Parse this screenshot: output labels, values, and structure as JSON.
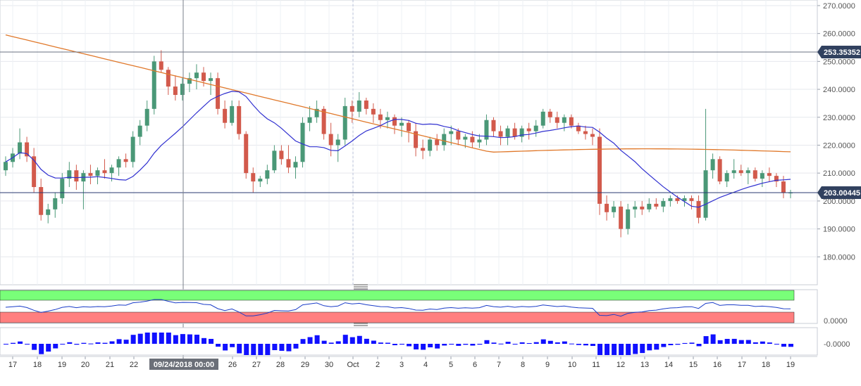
{
  "chart_data": [
    {
      "type": "candlestick",
      "title": "",
      "ylim": [
        170,
        272
      ],
      "grid": true,
      "y_ticks": [
        "270.0000",
        "260.0000",
        "250.0000",
        "240.0000",
        "230.0000",
        "220.0000",
        "210.0000",
        "200.0000",
        "190.0000",
        "180.0000"
      ],
      "y_tick_values": [
        270,
        260,
        250,
        240,
        230,
        220,
        210,
        200,
        190,
        180
      ],
      "price_markers": [
        {
          "label": "253.35352",
          "value": 253.35352
        },
        {
          "label": "203.00445",
          "value": 203.00445
        }
      ],
      "crosshair_date_label": "09/24/2018 00:00",
      "x_labels": [
        "17",
        "18",
        "19",
        "20",
        "21",
        "22",
        "09/24/2018 00:00",
        "26",
        "27",
        "28",
        "29",
        "30",
        "Oct",
        "2",
        "3",
        "4",
        "5",
        "6",
        "7",
        "8",
        "9",
        "10",
        "11",
        "12",
        "13",
        "14",
        "15",
        "16",
        "17",
        "18",
        "19"
      ],
      "candles": [
        [
          211,
          216,
          209,
          214
        ],
        [
          214,
          219,
          212,
          217
        ],
        [
          217,
          226,
          215,
          221
        ],
        [
          221,
          223,
          214,
          216
        ],
        [
          216,
          219,
          203,
          205
        ],
        [
          205,
          208,
          193,
          195
        ],
        [
          195,
          199,
          192,
          197
        ],
        [
          197,
          203,
          194,
          201
        ],
        [
          201,
          210,
          199,
          208
        ],
        [
          208,
          214,
          205,
          211
        ],
        [
          211,
          213,
          204,
          207
        ],
        [
          207,
          211,
          197,
          210
        ],
        [
          210,
          213,
          206,
          209
        ],
        [
          209,
          212,
          206,
          211
        ],
        [
          211,
          215,
          208,
          210
        ],
        [
          210,
          213,
          207,
          212
        ],
        [
          212,
          216,
          209,
          215
        ],
        [
          215,
          217,
          212,
          214
        ],
        [
          214,
          225,
          212,
          223
        ],
        [
          223,
          229,
          220,
          227
        ],
        [
          227,
          236,
          225,
          233
        ],
        [
          233,
          252,
          231,
          250
        ],
        [
          250,
          254,
          246,
          247
        ],
        [
          247,
          248,
          238,
          241
        ],
        [
          241,
          245,
          236,
          238
        ],
        [
          238,
          244,
          236,
          242
        ],
        [
          242,
          246,
          239,
          244
        ],
        [
          244,
          249,
          240,
          246
        ],
        [
          246,
          248,
          241,
          243
        ],
        [
          243,
          246,
          238,
          244
        ],
        [
          244,
          246,
          231,
          233
        ],
        [
          233,
          236,
          226,
          228
        ],
        [
          228,
          236,
          227,
          234
        ],
        [
          234,
          236,
          222,
          224
        ],
        [
          224,
          225,
          208,
          210
        ],
        [
          210,
          212,
          203,
          207
        ],
        [
          207,
          209,
          205,
          208
        ],
        [
          208,
          213,
          206,
          211
        ],
        [
          211,
          220,
          210,
          218
        ],
        [
          218,
          220,
          213,
          215
        ],
        [
          215,
          220,
          210,
          212
        ],
        [
          212,
          216,
          208,
          214
        ],
        [
          214,
          230,
          212,
          228
        ],
        [
          228,
          234,
          225,
          230
        ],
        [
          230,
          236,
          228,
          233
        ],
        [
          233,
          234,
          222,
          224
        ],
        [
          224,
          228,
          216,
          220
        ],
        [
          220,
          224,
          214,
          222
        ],
        [
          222,
          237,
          220,
          234
        ],
        [
          234,
          236,
          228,
          232
        ],
        [
          232,
          239,
          230,
          236
        ],
        [
          236,
          237,
          231,
          233
        ],
        [
          233,
          235,
          228,
          231
        ],
        [
          231,
          233,
          226,
          229
        ],
        [
          229,
          232,
          226,
          230
        ],
        [
          230,
          231,
          224,
          227
        ],
        [
          227,
          230,
          223,
          228
        ],
        [
          228,
          229,
          221,
          225
        ],
        [
          225,
          228,
          216,
          219
        ],
        [
          219,
          222,
          215,
          218
        ],
        [
          218,
          223,
          216,
          222
        ],
        [
          222,
          224,
          218,
          220
        ],
        [
          220,
          226,
          218,
          224
        ],
        [
          224,
          227,
          220,
          225
        ],
        [
          225,
          226,
          220,
          222
        ],
        [
          222,
          224,
          219,
          223
        ],
        [
          223,
          225,
          219,
          221
        ],
        [
          221,
          224,
          219,
          222
        ],
        [
          222,
          231,
          220,
          229
        ],
        [
          229,
          230,
          223,
          225
        ],
        [
          225,
          227,
          220,
          223
        ],
        [
          223,
          227,
          220,
          226
        ],
        [
          226,
          228,
          222,
          223
        ],
        [
          223,
          227,
          221,
          226
        ],
        [
          226,
          228,
          222,
          225
        ],
        [
          225,
          229,
          223,
          227
        ],
        [
          227,
          233,
          226,
          232
        ],
        [
          232,
          233,
          228,
          230
        ],
        [
          230,
          232,
          226,
          228
        ],
        [
          228,
          231,
          225,
          230
        ],
        [
          230,
          231,
          226,
          227
        ],
        [
          227,
          228,
          224,
          225
        ],
        [
          225,
          227,
          222,
          224
        ],
        [
          224,
          226,
          220,
          223
        ],
        [
          223,
          226,
          195,
          199
        ],
        [
          199,
          202,
          193,
          196
        ],
        [
          196,
          200,
          194,
          198
        ],
        [
          198,
          200,
          187,
          190
        ],
        [
          190,
          199,
          188,
          197
        ],
        [
          197,
          200,
          194,
          198
        ],
        [
          198,
          200,
          195,
          197
        ],
        [
          197,
          201,
          196,
          199
        ],
        [
          199,
          201,
          197,
          198
        ],
        [
          198,
          201,
          196,
          200
        ],
        [
          200,
          202,
          198,
          201
        ],
        [
          201,
          202,
          199,
          200
        ],
        [
          200,
          202,
          198,
          201
        ],
        [
          201,
          202,
          197,
          200
        ],
        [
          200,
          202,
          192,
          194
        ],
        [
          194,
          233,
          193,
          211
        ],
        [
          211,
          217,
          208,
          215
        ],
        [
          215,
          216,
          206,
          207
        ],
        [
          207,
          211,
          205,
          210
        ],
        [
          210,
          215,
          208,
          211
        ],
        [
          211,
          213,
          209,
          210
        ],
        [
          210,
          212,
          206,
          211
        ],
        [
          211,
          212,
          207,
          208
        ],
        [
          208,
          211,
          205,
          210
        ],
        [
          210,
          212,
          207,
          209
        ],
        [
          209,
          210,
          205,
          207
        ],
        [
          207,
          209,
          201,
          203
        ],
        [
          203,
          204,
          201,
          203
        ]
      ]
    },
    {
      "type": "line",
      "title": "",
      "y_ticks": [
        "0.0000"
      ],
      "levels": {
        "overbought_color": "#79ff79",
        "oversold_color": "#ff7f7f"
      },
      "series_color": "#1a3cc8"
    },
    {
      "type": "bar",
      "title": "",
      "y_ticks": [
        "-0.0000",
        "-0.0000"
      ],
      "series_color": "#1010ff"
    }
  ],
  "colors": {
    "up": "#4a9877",
    "down": "#d25a4c",
    "ma_fast": "#3030d0",
    "ma_slow": "#e0782a",
    "grid": "#e6e8ee",
    "price_marker_bg": "#31415f"
  }
}
